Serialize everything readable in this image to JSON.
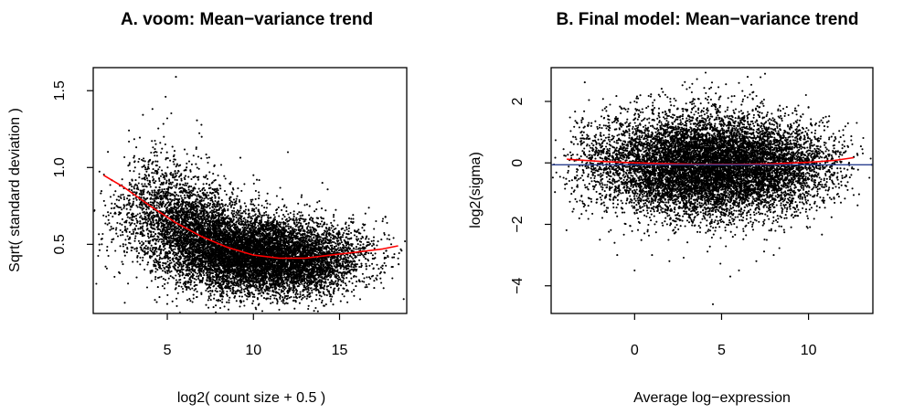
{
  "chart_data": [
    {
      "type": "scatter",
      "title": "A. voom: Mean−variance trend",
      "xlabel": "log2( count size + 0.5 )",
      "ylabel": "Sqrt( standard deviation )",
      "xlim": [
        0.7,
        18.9
      ],
      "ylim": [
        0.05,
        1.65
      ],
      "xticks": [
        5,
        10,
        15
      ],
      "xtick_labels": [
        "5",
        "10",
        "15"
      ],
      "yticks": [
        0.5,
        1.0,
        1.5
      ],
      "ytick_labels": [
        "0.5",
        "1.0",
        "1.5"
      ],
      "point_color": "#000000",
      "grid": false,
      "legend": "none",
      "series": [
        {
          "kind": "points",
          "points": [
            [
              1.2,
              0.5
            ],
            [
              1.5,
              0.46
            ],
            [
              2.0,
              0.7
            ],
            [
              2.4,
              0.58
            ],
            [
              3.0,
              0.84
            ],
            [
              3.2,
              0.62
            ],
            [
              3.6,
              0.5
            ],
            [
              4.0,
              1.05
            ],
            [
              4.2,
              0.92
            ],
            [
              4.5,
              0.8
            ],
            [
              4.8,
              1.2
            ],
            [
              5.0,
              1.32
            ],
            [
              5.2,
              0.72
            ],
            [
              5.4,
              1.08
            ],
            [
              5.5,
              1.59
            ],
            [
              4.9,
              1.46
            ],
            [
              5.8,
              0.95
            ],
            [
              6.0,
              0.85
            ],
            [
              6.5,
              0.75
            ],
            [
              7.0,
              0.6
            ],
            [
              7.5,
              0.55
            ],
            [
              8.0,
              0.5
            ],
            [
              8.5,
              0.45
            ],
            [
              9.0,
              0.42
            ],
            [
              9.5,
              0.4
            ],
            [
              10.0,
              0.38
            ],
            [
              10.5,
              0.37
            ],
            [
              11.0,
              0.36
            ],
            [
              11.5,
              0.36
            ],
            [
              12.0,
              0.37
            ],
            [
              12.5,
              0.38
            ],
            [
              13.0,
              0.39
            ],
            [
              13.5,
              0.4
            ],
            [
              14.0,
              0.41
            ],
            [
              14.5,
              0.43
            ],
            [
              15.0,
              0.44
            ],
            [
              15.5,
              0.45
            ],
            [
              16.0,
              0.55
            ],
            [
              16.5,
              0.7
            ],
            [
              17.0,
              0.6
            ],
            [
              17.5,
              0.65
            ],
            [
              18.0,
              0.5
            ],
            [
              9.0,
              0.18
            ],
            [
              11.0,
              0.16
            ],
            [
              12.0,
              0.2
            ],
            [
              8.0,
              0.8
            ],
            [
              10.0,
              0.95
            ],
            [
              12.0,
              1.1
            ],
            [
              14.0,
              0.9
            ],
            [
              7.0,
              1.2
            ]
          ],
          "density": [
            {
              "x": 2.5,
              "y": 0.62,
              "sx": 0.9,
              "sy": 0.18,
              "n": 150
            },
            {
              "x": 4.5,
              "y": 0.72,
              "sx": 1.0,
              "sy": 0.2,
              "n": 900
            },
            {
              "x": 6.5,
              "y": 0.58,
              "sx": 1.2,
              "sy": 0.17,
              "n": 2200
            },
            {
              "x": 9.0,
              "y": 0.45,
              "sx": 1.5,
              "sy": 0.13,
              "n": 3400
            },
            {
              "x": 11.5,
              "y": 0.41,
              "sx": 1.5,
              "sy": 0.12,
              "n": 3000
            },
            {
              "x": 13.8,
              "y": 0.41,
              "sx": 1.2,
              "sy": 0.12,
              "n": 1300
            },
            {
              "x": 16.3,
              "y": 0.43,
              "sx": 1.1,
              "sy": 0.12,
              "n": 220
            }
          ]
        },
        {
          "kind": "line",
          "color": "#ff0000",
          "x": [
            1.3,
            2.5,
            4.0,
            5.5,
            7.0,
            8.5,
            10.0,
            11.5,
            13.0,
            14.5,
            16.0,
            17.5,
            18.4
          ],
          "y": [
            0.95,
            0.87,
            0.75,
            0.64,
            0.55,
            0.48,
            0.43,
            0.41,
            0.41,
            0.43,
            0.45,
            0.47,
            0.49
          ]
        }
      ]
    },
    {
      "type": "scatter",
      "title": "B. Final model: Mean−variance trend",
      "xlabel": "Average log−expression",
      "ylabel": "log2(sigma)",
      "xlim": [
        -4.8,
        13.7
      ],
      "ylim": [
        -4.9,
        3.1
      ],
      "xticks": [
        0,
        5,
        10
      ],
      "xtick_labels": [
        "0",
        "5",
        "10"
      ],
      "yticks": [
        -4,
        -2,
        0,
        2
      ],
      "ytick_labels": [
        "−4",
        "−2",
        "0",
        "2"
      ],
      "point_color": "#000000",
      "grid": false,
      "legend": "none",
      "series": [
        {
          "kind": "points",
          "points": [
            [
              -4.0,
              -0.7
            ],
            [
              -3.5,
              -1.5
            ],
            [
              -3.0,
              0.9
            ],
            [
              -2.0,
              -2.5
            ],
            [
              -1.0,
              -3.0
            ],
            [
              0.0,
              -3.5
            ],
            [
              1.0,
              -3.0
            ],
            [
              2.0,
              -3.2
            ],
            [
              4.5,
              -4.6
            ],
            [
              5.5,
              -3.7
            ],
            [
              6.0,
              -3.5
            ],
            [
              7.0,
              -3.2
            ],
            [
              8.0,
              -3.0
            ],
            [
              7.5,
              2.9
            ],
            [
              6.5,
              2.8
            ],
            [
              6.0,
              2.6
            ],
            [
              3.0,
              2.4
            ],
            [
              0.0,
              2.0
            ],
            [
              -1.0,
              1.4
            ],
            [
              10.0,
              1.8
            ],
            [
              11.0,
              1.5
            ],
            [
              12.0,
              0.9
            ],
            [
              12.8,
              0.3
            ],
            [
              11.5,
              -1.3
            ],
            [
              -2.5,
              1.2
            ]
          ],
          "density": [
            {
              "x": -1.5,
              "y": 0.0,
              "sx": 1.3,
              "sy": 0.8,
              "n": 700
            },
            {
              "x": 1.5,
              "y": -0.05,
              "sx": 1.5,
              "sy": 0.8,
              "n": 2400
            },
            {
              "x": 4.2,
              "y": -0.1,
              "sx": 1.6,
              "sy": 0.85,
              "n": 3900
            },
            {
              "x": 7.0,
              "y": -0.1,
              "sx": 1.6,
              "sy": 0.8,
              "n": 3000
            },
            {
              "x": 9.5,
              "y": -0.05,
              "sx": 1.3,
              "sy": 0.7,
              "n": 700
            },
            {
              "x": 11.5,
              "y": 0.0,
              "sx": 0.9,
              "sy": 0.6,
              "n": 90
            }
          ]
        },
        {
          "kind": "line",
          "color": "#ff0000",
          "x": [
            -3.9,
            -2.0,
            0.0,
            2.0,
            4.0,
            6.0,
            8.0,
            10.0,
            11.5,
            12.6
          ],
          "y": [
            0.12,
            0.05,
            0.0,
            -0.03,
            -0.05,
            -0.05,
            -0.03,
            0.02,
            0.08,
            0.17
          ]
        },
        {
          "kind": "hline",
          "color": "#2a3f8f",
          "y": -0.06
        }
      ]
    }
  ]
}
